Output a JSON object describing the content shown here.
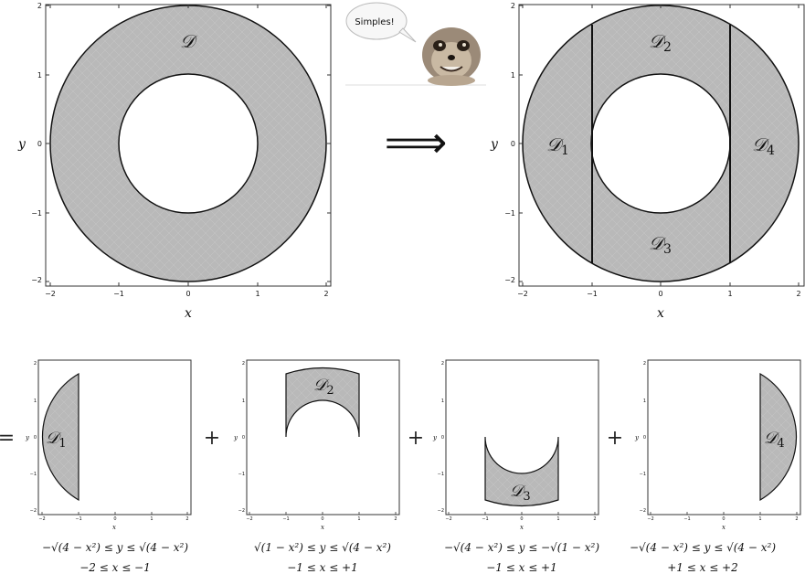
{
  "symbols": {
    "region": "𝒟",
    "implies": "⟹",
    "equals": "=",
    "plus": "+"
  },
  "subscripts": [
    "1",
    "2",
    "3",
    "4"
  ],
  "axes": {
    "x_label": "x",
    "y_label": "y",
    "ticks": [
      "−2",
      "−1",
      "0",
      "1",
      "2"
    ]
  },
  "speech_bubble": "Simples!",
  "bounds": [
    {
      "y": "−√(4 − x²) ≤ y ≤ √(4 − x²)",
      "x": "−2 ≤ x ≤ −1"
    },
    {
      "y": "√(1 − x²) ≤ y ≤ √(4 − x²)",
      "x": "−1 ≤ x ≤ +1"
    },
    {
      "y": "−√(4 − x²) ≤ y ≤ −√(1 − x²)",
      "x": "−1 ≤ x ≤ +1"
    },
    {
      "y": "−√(4 − x²) ≤ y ≤ √(4 − x²)",
      "x": "+1 ≤ x ≤ +2"
    }
  ],
  "colors": {
    "fill": "#b9b9b9",
    "frame": "#333333"
  }
}
